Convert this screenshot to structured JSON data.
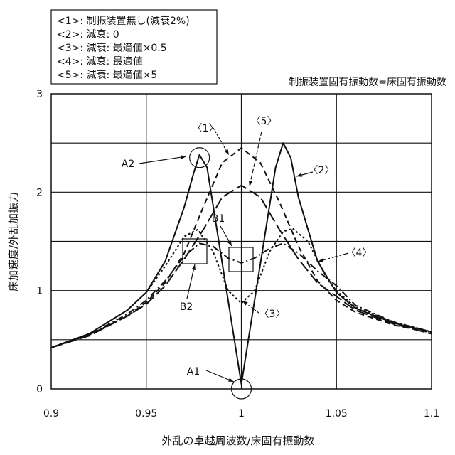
{
  "chart_data": {
    "type": "line",
    "title": "制振装置固有振動数=床固有振動数",
    "xlabel": "外乱の卓越周波数/床固有振動数",
    "ylabel": "床加速度/外乱加振力",
    "xlim": [
      0.9,
      1.1
    ],
    "ylim": [
      0,
      3
    ],
    "xticks": [
      0.9,
      0.95,
      1,
      1.05,
      1.1
    ],
    "xtick_labels": [
      "0.9",
      "0.95",
      "1",
      "1.05",
      "1.1"
    ],
    "yticks": [
      0,
      1,
      2,
      3
    ],
    "ytick_labels": [
      "0",
      "1",
      "2",
      "3"
    ],
    "grid": true,
    "legend": [
      "<1>: 制振装置無し(減衰2%)",
      "<2>: 減衰: 0",
      "<3>: 減衰: 最適値×0.5",
      "<4>: 減衰: 最適値",
      "<5>: 減衰: 最適値×5"
    ],
    "legend_position": "top-left",
    "series": [
      {
        "name": "<1>",
        "label": "〈1〉",
        "style": "dash",
        "x": [
          0.9,
          0.92,
          0.94,
          0.95,
          0.96,
          0.97,
          0.98,
          0.99,
          1.0,
          1.01,
          1.02,
          1.03,
          1.04,
          1.05,
          1.06,
          1.08,
          1.1
        ],
        "y": [
          0.42,
          0.55,
          0.74,
          0.88,
          1.08,
          1.38,
          1.85,
          2.3,
          2.45,
          2.3,
          1.9,
          1.45,
          1.1,
          0.9,
          0.78,
          0.65,
          0.57
        ]
      },
      {
        "name": "<2>",
        "label": "〈2〉",
        "style": "solid",
        "x": [
          0.9,
          0.92,
          0.94,
          0.95,
          0.96,
          0.97,
          0.975,
          0.978,
          0.982,
          1.0,
          1.018,
          1.022,
          1.026,
          1.03,
          1.04,
          1.05,
          1.06,
          1.08,
          1.1
        ],
        "y": [
          0.42,
          0.56,
          0.8,
          0.98,
          1.3,
          1.85,
          2.2,
          2.38,
          2.25,
          0.05,
          2.25,
          2.5,
          2.35,
          1.95,
          1.3,
          0.98,
          0.82,
          0.67,
          0.58
        ]
      },
      {
        "name": "<3>",
        "label": "〈3〉",
        "style": "dot",
        "x": [
          0.9,
          0.92,
          0.94,
          0.95,
          0.96,
          0.97,
          0.977,
          0.985,
          0.993,
          1.0,
          1.007,
          1.015,
          1.022,
          1.027,
          1.035,
          1.045,
          1.05,
          1.06,
          1.08,
          1.1
        ],
        "y": [
          0.42,
          0.56,
          0.8,
          0.98,
          1.25,
          1.55,
          1.62,
          1.4,
          1.0,
          0.87,
          1.0,
          1.4,
          1.6,
          1.63,
          1.5,
          1.12,
          1.0,
          0.83,
          0.68,
          0.58
        ]
      },
      {
        "name": "<4>",
        "label": "〈4〉",
        "style": "dashdot",
        "x": [
          0.9,
          0.92,
          0.94,
          0.95,
          0.96,
          0.97,
          0.978,
          0.985,
          0.993,
          1.0,
          1.007,
          1.015,
          1.022,
          1.03,
          1.04,
          1.05,
          1.06,
          1.08,
          1.1
        ],
        "y": [
          0.42,
          0.55,
          0.76,
          0.9,
          1.1,
          1.35,
          1.48,
          1.45,
          1.33,
          1.28,
          1.33,
          1.43,
          1.48,
          1.38,
          1.2,
          1.05,
          0.85,
          0.68,
          0.58
        ]
      },
      {
        "name": "<5>",
        "label": "〈5〉",
        "style": "longdash",
        "x": [
          0.9,
          0.92,
          0.94,
          0.95,
          0.96,
          0.97,
          0.98,
          0.99,
          1.0,
          1.01,
          1.02,
          1.03,
          1.04,
          1.05,
          1.06,
          1.08,
          1.1
        ],
        "y": [
          0.42,
          0.54,
          0.74,
          0.86,
          1.05,
          1.32,
          1.62,
          1.95,
          2.07,
          1.95,
          1.62,
          1.32,
          1.08,
          0.94,
          0.8,
          0.66,
          0.56
        ]
      }
    ],
    "annotations": [
      {
        "label": "A1",
        "x": 1.0,
        "y": 0.0,
        "marker": "circle"
      },
      {
        "label": "A2",
        "x": 0.978,
        "y": 2.38,
        "marker": "circle"
      },
      {
        "label": "B1",
        "x": 1.0,
        "y": 1.3,
        "marker": "box"
      },
      {
        "label": "B2",
        "x": 0.976,
        "y": 1.4,
        "marker": "box"
      }
    ]
  }
}
